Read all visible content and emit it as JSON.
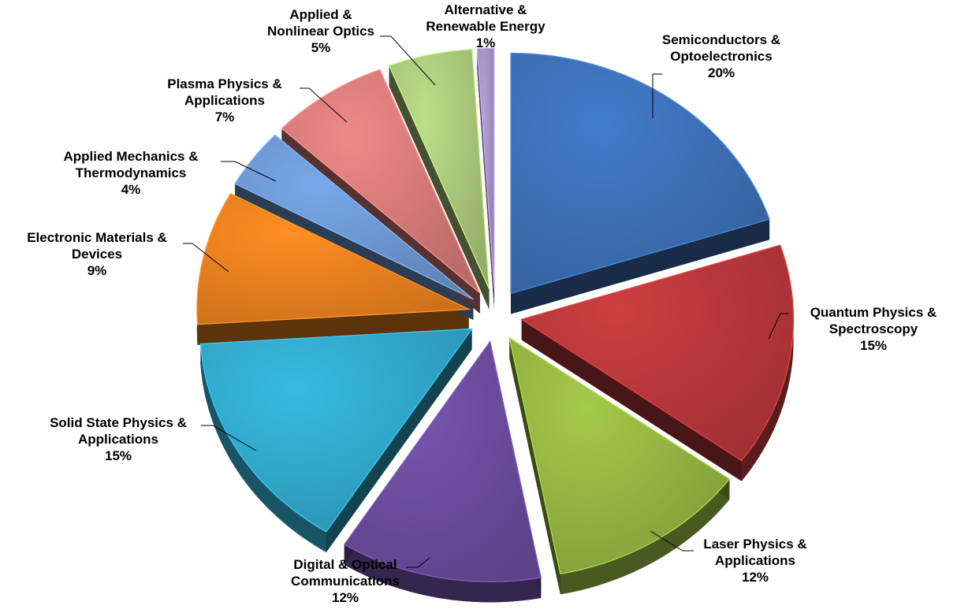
{
  "chart_data": {
    "type": "pie",
    "title": "",
    "exploded": true,
    "style": "3d",
    "slices": [
      {
        "label": [
          "Semiconductors &",
          "Optoelectronics"
        ],
        "percent_label": "20%",
        "value": 20,
        "color": "#3c6fb4"
      },
      {
        "label": [
          "Quantum Physics &",
          "Spectroscopy"
        ],
        "percent_label": "15%",
        "value": 15,
        "color": "#b7373a"
      },
      {
        "label": [
          "Laser Physics &",
          "Applications"
        ],
        "percent_label": "12%",
        "value": 12,
        "color": "#92b441"
      },
      {
        "label": [
          "Digital & Optical",
          "Communications"
        ],
        "percent_label": "12%",
        "value": 12,
        "color": "#6a4c9c"
      },
      {
        "label": [
          "Solid State Physics &",
          "Applications"
        ],
        "percent_label": "15%",
        "value": 15,
        "color": "#31a7c9"
      },
      {
        "label": [
          "Electronic Materials &",
          "Devices"
        ],
        "percent_label": "9%",
        "value": 9,
        "color": "#e97f1f"
      },
      {
        "label": [
          "Applied Mechanics &",
          "Thermodynamics"
        ],
        "percent_label": "4%",
        "value": 4,
        "color": "#6c96d0"
      },
      {
        "label": [
          "Plasma Physics &",
          "Applications"
        ],
        "percent_label": "7%",
        "value": 7,
        "color": "#d57a78"
      },
      {
        "label": [
          "Applied &",
          "Nonlinear Optics"
        ],
        "percent_label": "5%",
        "value": 5,
        "color": "#a9c77a"
      },
      {
        "label": [
          "Alternative &",
          "Renewable Energy"
        ],
        "percent_label": "1%",
        "value": 1,
        "color": "#a391c2"
      }
    ]
  }
}
